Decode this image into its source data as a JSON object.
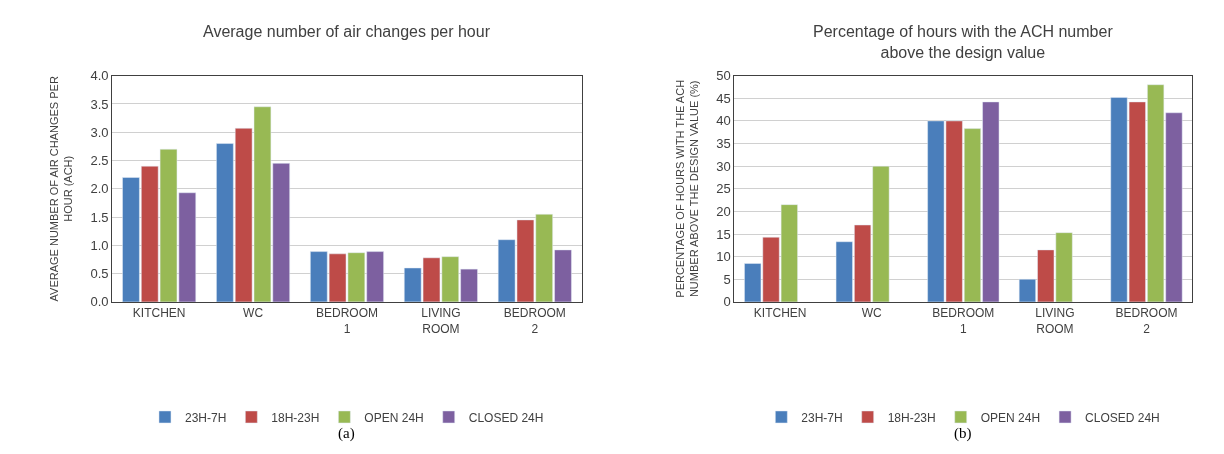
{
  "chart_data": [
    {
      "type": "bar",
      "title": "Average number of air changes per hour",
      "ylabel": "AVERAGE NUMBER OF AIR CHANGES PER HOUR (ACH)",
      "categories": [
        "KITCHEN",
        "WC",
        "BEDROOM 1",
        "LIVING ROOM",
        "BEDROOM 2"
      ],
      "series": [
        {
          "name": "23H-7H",
          "color": "#4a7ebb",
          "values": [
            2.2,
            2.8,
            0.89,
            0.6,
            1.1
          ]
        },
        {
          "name": "18H-23H",
          "color": "#be4b48",
          "values": [
            2.4,
            3.07,
            0.85,
            0.78,
            1.45
          ]
        },
        {
          "name": "OPEN 24H",
          "color": "#98b954",
          "values": [
            2.7,
            3.45,
            0.87,
            0.8,
            1.55
          ]
        },
        {
          "name": "CLOSED 24H",
          "color": "#7d60a0",
          "values": [
            1.93,
            2.45,
            0.89,
            0.58,
            0.92
          ]
        }
      ],
      "ylim": [
        0,
        4
      ],
      "yticks": [
        {
          "value": 0,
          "label": "0.0"
        },
        0.5,
        {
          "value": 1,
          "label": "1.0"
        },
        1.5,
        {
          "value": 2,
          "label": "2.0"
        },
        2.5,
        {
          "value": 3,
          "label": "3.0"
        },
        3.5,
        {
          "value": 4,
          "label": "4.0"
        }
      ],
      "grid": "y",
      "legend": "bottom",
      "annotations": [
        "(a)"
      ]
    },
    {
      "type": "bar",
      "title": "Percentage of hours with the ACH number above the design value",
      "ylabel": "PERCENTAGE OF HOURS WITH THE ACH NUMBER ABOVE THE DESIGN VALUE (%)",
      "categories": [
        "KITCHEN",
        "WC",
        "BEDROOM 1",
        "LIVING ROOM",
        "BEDROOM 2"
      ],
      "series": [
        {
          "name": "23H-7H",
          "color": "#4a7ebb",
          "values": [
            8.5,
            13.3,
            40,
            5,
            45.2
          ]
        },
        {
          "name": "18H-23H",
          "color": "#be4b48",
          "values": [
            14.3,
            17,
            40,
            11.5,
            44.2
          ]
        },
        {
          "name": "OPEN 24H",
          "color": "#98b954",
          "values": [
            21.5,
            30,
            38.3,
            15.3,
            48
          ]
        },
        {
          "name": "CLOSED 24H",
          "color": "#7d60a0",
          "values": [
            null,
            null,
            44.2,
            null,
            41.8
          ]
        }
      ],
      "ylim": [
        0,
        50
      ],
      "yticks": [
        0,
        5,
        10,
        15,
        20,
        25,
        30,
        35,
        40,
        45,
        50
      ],
      "grid": "y",
      "legend": "bottom",
      "annotations": [
        "(b)"
      ]
    }
  ]
}
